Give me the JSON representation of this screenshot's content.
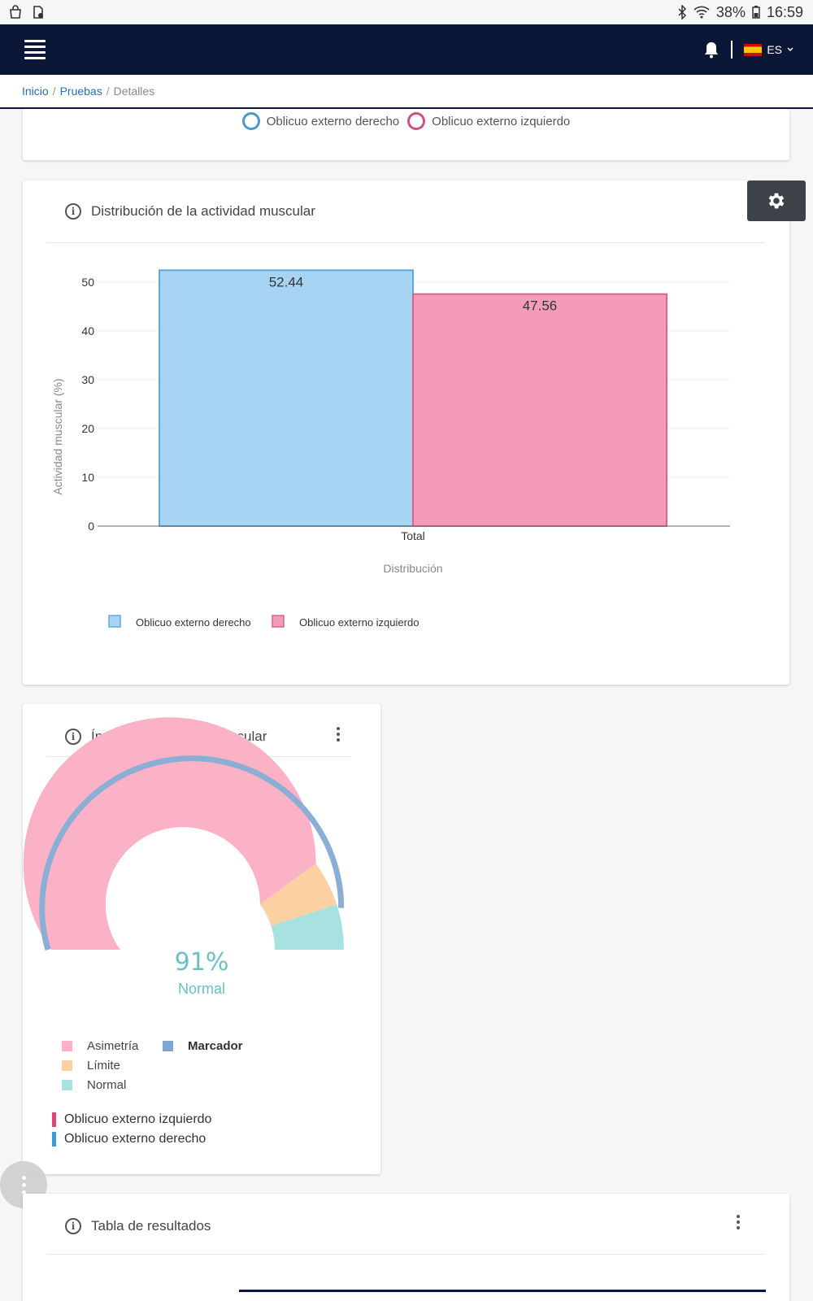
{
  "status_bar": {
    "battery": "38%",
    "time": "16:59"
  },
  "navbar": {
    "language": "ES"
  },
  "breadcrumb": {
    "home": "Inicio",
    "section": "Pruebas",
    "current": "Detalles",
    "separator": "/"
  },
  "top_legend": {
    "items": [
      {
        "label": "Oblicuo externo derecho",
        "color": "#4a9ac9"
      },
      {
        "label": "Oblicuo externo izquierdo",
        "color": "#c95382"
      }
    ]
  },
  "distribution_card": {
    "title": "Distribución de la actividad muscular"
  },
  "chart_data": {
    "type": "bar",
    "title": "Distribución de la actividad muscular",
    "categories": [
      "Total"
    ],
    "series": [
      {
        "name": "Oblicuo externo derecho",
        "values": [
          52.44
        ],
        "color": "#a8d4f4",
        "border": "#5aa9e0"
      },
      {
        "name": "Oblicuo externo izquierdo",
        "values": [
          47.56
        ],
        "color": "#f49bba",
        "border": "#d9648f"
      }
    ],
    "data_labels": [
      "52.44",
      "47.56"
    ],
    "xlabel": "Distribución",
    "ylabel": "Actividad muscular (%)",
    "ylim": [
      0,
      50
    ],
    "yticks": [
      0,
      10,
      20,
      30,
      40,
      50
    ],
    "grid": true,
    "legend": "bottom-left"
  },
  "symmetry_card": {
    "title": "Índices de simetría muscular",
    "percent": "91%",
    "status": "Normal",
    "gauge": {
      "segments": [
        {
          "name": "Asimetría",
          "fraction": 0.8,
          "color": "#fbb2c7"
        },
        {
          "name": "Límite",
          "fraction": 0.1,
          "color": "#fbd1a4"
        },
        {
          "name": "Normal",
          "fraction": 0.1,
          "color": "#a7e2e0"
        }
      ],
      "marker_value": 0.91,
      "marker_color": "#8aaed4"
    },
    "legend": {
      "asimetria": {
        "label": "Asimetría",
        "color": "#fbb2c7"
      },
      "limite": {
        "label": "Límite",
        "color": "#fbd1a4"
      },
      "normal": {
        "label": "Normal",
        "color": "#a7e2e0"
      },
      "marcador": {
        "label": "Marcador",
        "color": "#7fa6d3"
      }
    },
    "lines": [
      {
        "label": "Oblicuo externo izquierdo",
        "color": "#e0457a"
      },
      {
        "label": "Oblicuo externo derecho",
        "color": "#3d9ad6"
      }
    ]
  },
  "results_card": {
    "title": "Tabla de resultados"
  }
}
